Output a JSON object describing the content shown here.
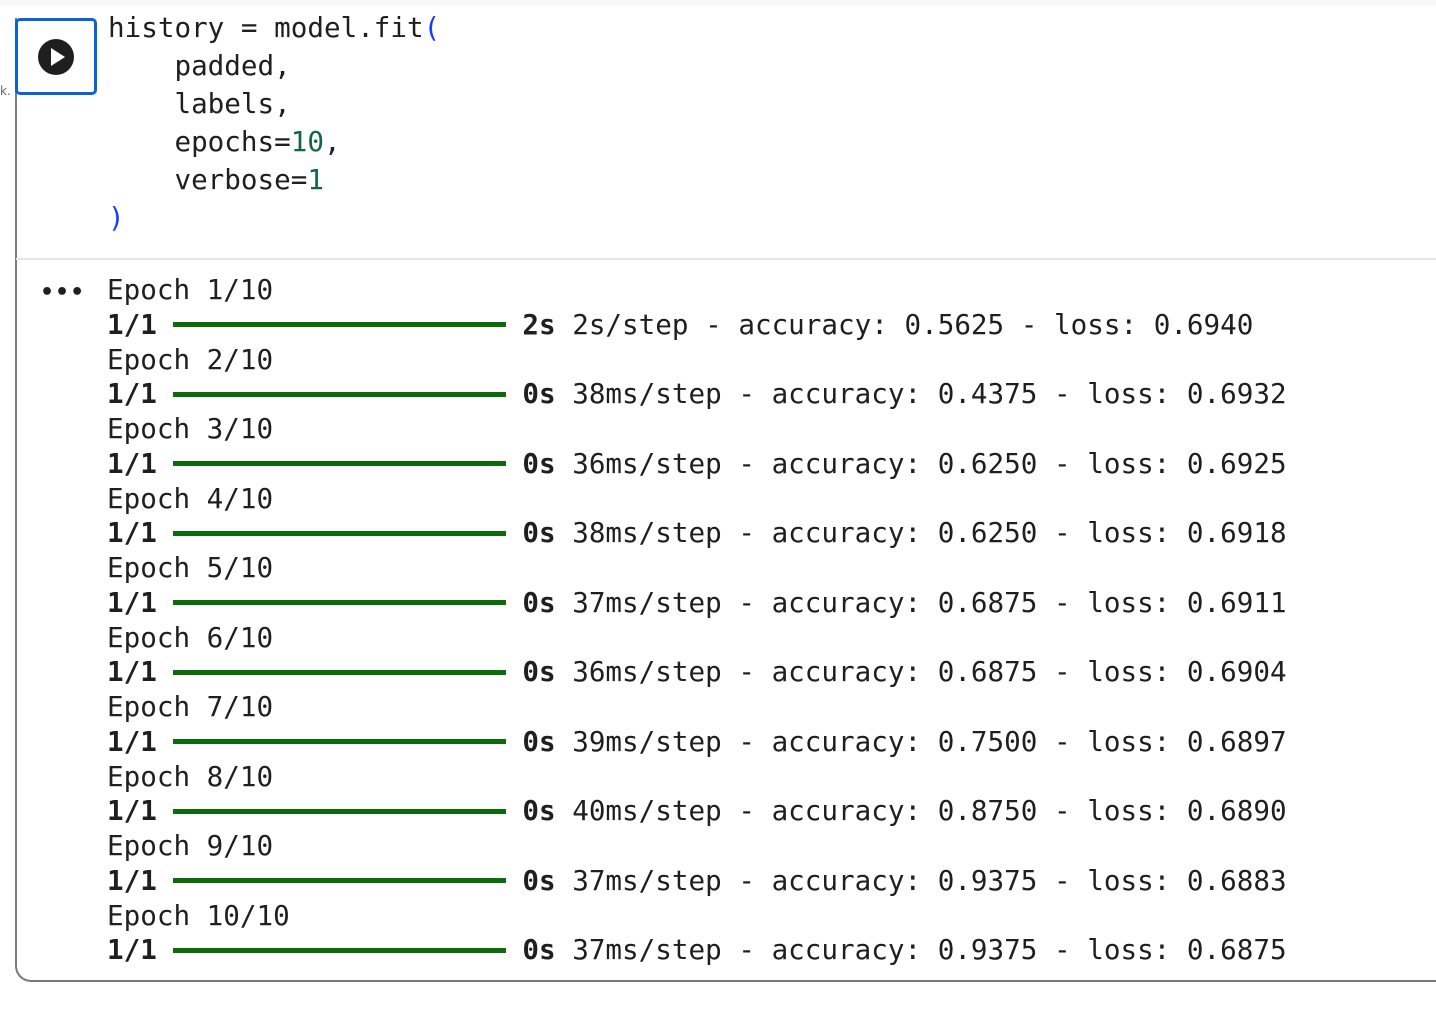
{
  "cell": {
    "gutter_mark": "k.",
    "run_button": {
      "icon": "play-circle-icon",
      "color": "#0b62d6"
    },
    "code": {
      "line1": "history = model.fit",
      "open_paren": "(",
      "line2": "    padded,",
      "line3": "    labels,",
      "line4_key": "    epochs=",
      "line4_val": "10",
      "line4_end": ",",
      "line5_key": "    verbose=",
      "line5_val": "1",
      "close_paren": ")"
    },
    "output_menu": "•••",
    "progress_color": "#0b6b0b",
    "epochs": [
      {
        "label": "Epoch 1/10",
        "step": "1/1",
        "progress": 1.0,
        "time": "2s",
        "rate": "2s/step",
        "accuracy": "0.5625",
        "loss": "0.6940"
      },
      {
        "label": "Epoch 2/10",
        "step": "1/1",
        "progress": 1.0,
        "time": "0s",
        "rate": "38ms/step",
        "accuracy": "0.4375",
        "loss": "0.6932"
      },
      {
        "label": "Epoch 3/10",
        "step": "1/1",
        "progress": 1.0,
        "time": "0s",
        "rate": "36ms/step",
        "accuracy": "0.6250",
        "loss": "0.6925"
      },
      {
        "label": "Epoch 4/10",
        "step": "1/1",
        "progress": 1.0,
        "time": "0s",
        "rate": "38ms/step",
        "accuracy": "0.6250",
        "loss": "0.6918"
      },
      {
        "label": "Epoch 5/10",
        "step": "1/1",
        "progress": 1.0,
        "time": "0s",
        "rate": "37ms/step",
        "accuracy": "0.6875",
        "loss": "0.6911"
      },
      {
        "label": "Epoch 6/10",
        "step": "1/1",
        "progress": 1.0,
        "time": "0s",
        "rate": "36ms/step",
        "accuracy": "0.6875",
        "loss": "0.6904"
      },
      {
        "label": "Epoch 7/10",
        "step": "1/1",
        "progress": 1.0,
        "time": "0s",
        "rate": "39ms/step",
        "accuracy": "0.7500",
        "loss": "0.6897"
      },
      {
        "label": "Epoch 8/10",
        "step": "1/1",
        "progress": 1.0,
        "time": "0s",
        "rate": "40ms/step",
        "accuracy": "0.8750",
        "loss": "0.6890"
      },
      {
        "label": "Epoch 9/10",
        "step": "1/1",
        "progress": 1.0,
        "time": "0s",
        "rate": "37ms/step",
        "accuracy": "0.9375",
        "loss": "0.6883"
      },
      {
        "label": "Epoch 10/10",
        "step": "1/1",
        "progress": 1.0,
        "time": "0s",
        "rate": "37ms/step",
        "accuracy": "0.9375",
        "loss": "0.6875"
      }
    ],
    "metric_labels": {
      "accuracy": "accuracy: ",
      "loss": "loss: ",
      "separator": " - "
    }
  }
}
